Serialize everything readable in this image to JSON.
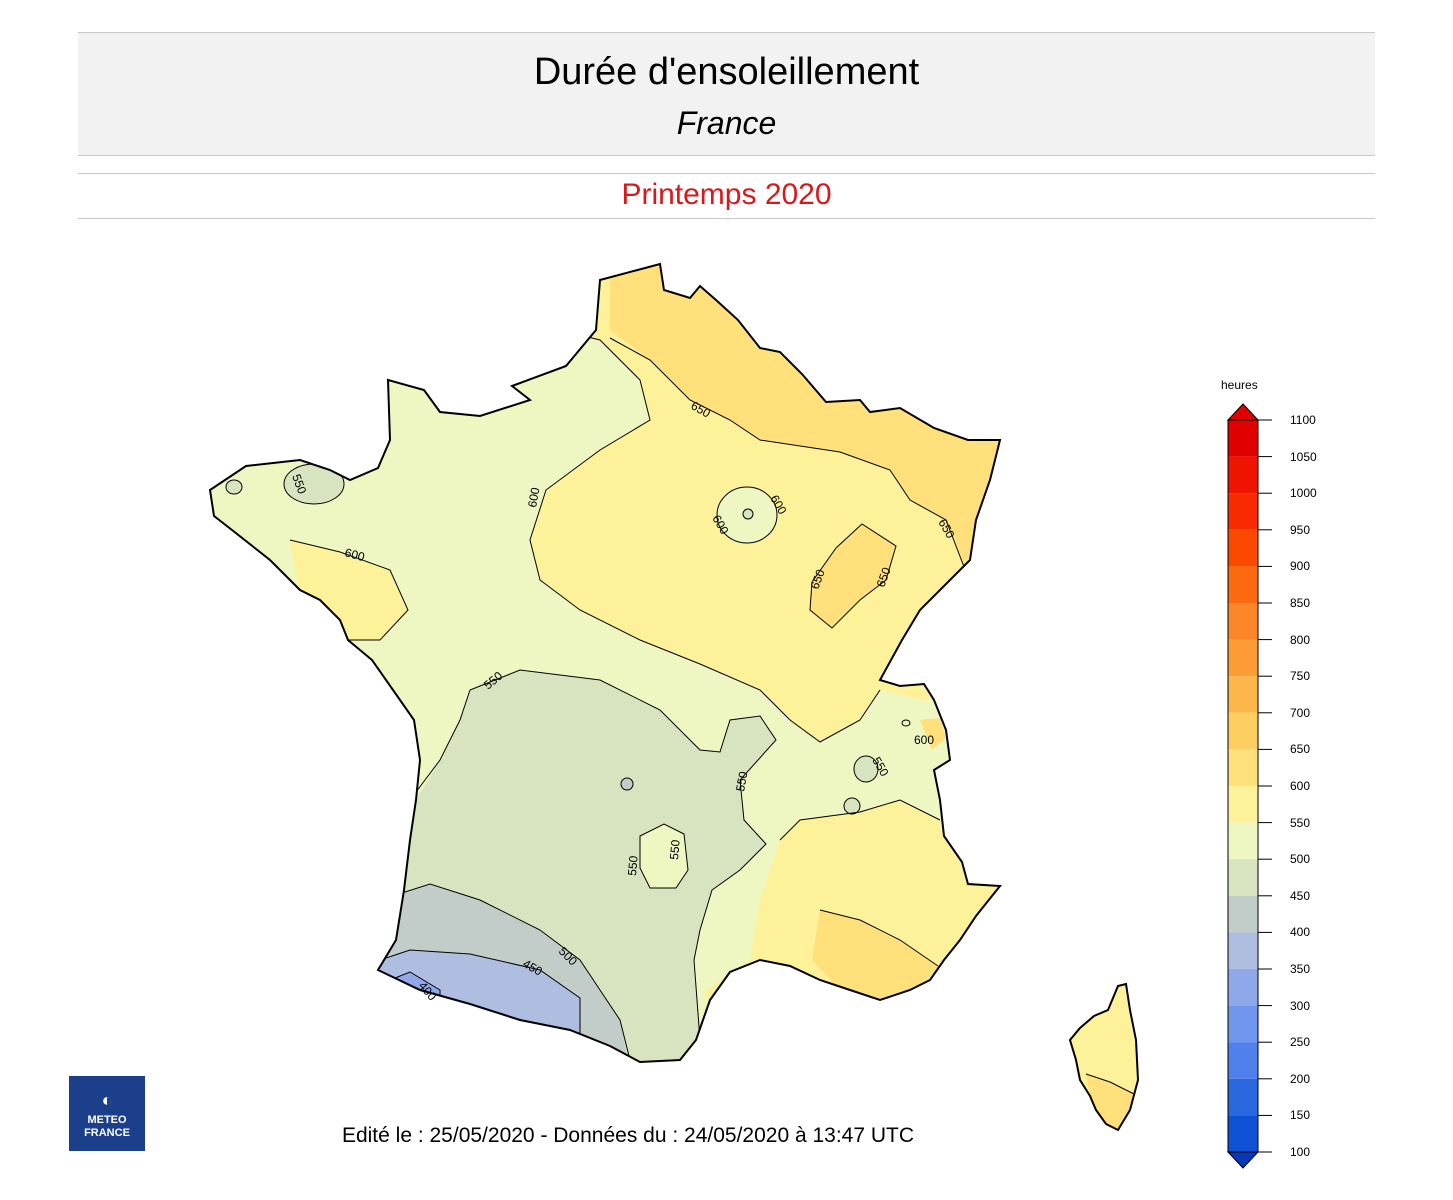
{
  "header": {
    "title": "Durée d'ensoleillement",
    "subtitle": "France",
    "period": "Printemps 2020"
  },
  "legend": {
    "title": "heures",
    "ticks": [
      1100,
      1050,
      1000,
      950,
      900,
      850,
      800,
      750,
      700,
      650,
      600,
      550,
      500,
      450,
      400,
      350,
      300,
      250,
      200,
      150,
      100
    ],
    "colors": {
      "1100": "#e00000",
      "1050": "#ee1400",
      "1000": "#f82a00",
      "950": "#fb4a00",
      "900": "#fc6a10",
      "850": "#fd8728",
      "800": "#fd9c35",
      "750": "#fdb64a",
      "700": "#fdcf60",
      "650": "#ffe07a",
      "600": "#fdf29a",
      "550": "#eef6c2",
      "500": "#d8e4c0",
      "450": "#c2cdca",
      "400": "#aebde0",
      "350": "#8ea8ea",
      "300": "#7096ee",
      "250": "#4f80ec",
      "200": "#2a68e0",
      "150": "#0f52d6",
      "100": "#0838b8"
    }
  },
  "contour_labels": [
    "650",
    "650",
    "600",
    "600",
    "600",
    "650",
    "650",
    "550",
    "600",
    "550",
    "600",
    "550",
    "550",
    "550",
    "550",
    "550",
    "500",
    "450",
    "400"
  ],
  "logo": {
    "line1": "METEO",
    "line2": "FRANCE",
    "icon": "meteo-france-logo-icon"
  },
  "footer": "Edité le : 25/05/2020 - Données du : 24/05/2020 à 13:47 UTC"
}
